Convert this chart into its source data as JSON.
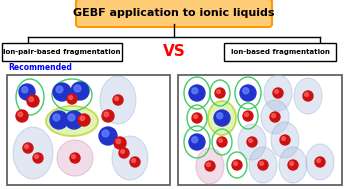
{
  "title": "GEBF application to ionic liquids",
  "left_label": "Ion-pair-based fragmentation",
  "right_label": "Ion-based fragmentation",
  "vs_text": "VS",
  "recommended_text": "Recommended",
  "title_facecolor": "#FFCC77",
  "title_edgecolor": "#FF9900",
  "figsize": [
    3.47,
    1.89
  ],
  "dpi": 100
}
